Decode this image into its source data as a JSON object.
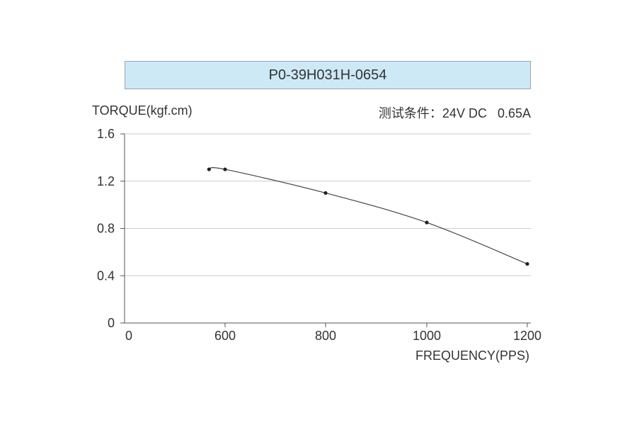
{
  "chart_data": {
    "type": "line",
    "title": "P0-39H031H-0654",
    "ylabel": "TORQUE(kgf.cm)",
    "xlabel": "FREQUENCY(PPS)",
    "annotation": "测试条件：24V DC   0.65A",
    "x_tick_labels": [
      "0",
      "600",
      "800",
      "1000",
      "1200"
    ],
    "y_tick_labels": [
      "0",
      "0.4",
      "0.8",
      "1.2",
      "1.6"
    ],
    "y_ticks": [
      0,
      0.4,
      0.8,
      1.2,
      1.6
    ],
    "ylim": [
      0,
      1.6
    ],
    "grid": true,
    "series": [
      {
        "x": [
          500,
          600,
          800,
          1000,
          1200
        ],
        "values": [
          1.3,
          1.3,
          1.1,
          0.85,
          0.5
        ]
      }
    ],
    "colors": {
      "line": "#444444",
      "grid": "#cccccc",
      "axis": "#555555",
      "title_bg": "#cde9f6"
    }
  }
}
